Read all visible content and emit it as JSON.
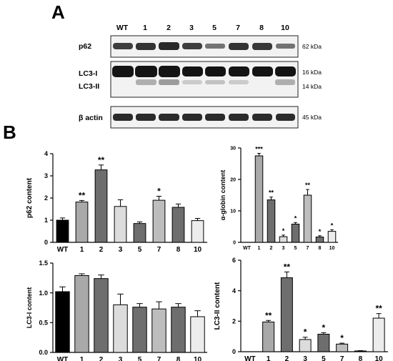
{
  "panel_a": {
    "letter": "A",
    "lane_labels": [
      "WT",
      "1",
      "2",
      "3",
      "5",
      "7",
      "8",
      "10"
    ],
    "rows": [
      {
        "label": "p62",
        "label2": "",
        "sizes": [
          "62 kDa"
        ]
      },
      {
        "label": "LC3-I",
        "label2": "LC3-II",
        "sizes": [
          "16 kDa",
          "14 kDa"
        ]
      },
      {
        "label": "β actin",
        "label2": "",
        "sizes": [
          "45 kDa"
        ]
      }
    ]
  },
  "panel_b": {
    "letter": "B"
  },
  "chart_data": [
    {
      "type": "bar",
      "categories": [
        "WT",
        "1",
        "2",
        "3",
        "5",
        "7",
        "8",
        "10"
      ],
      "values": [
        1.0,
        1.82,
        3.27,
        1.62,
        0.85,
        1.9,
        1.58,
        0.98
      ],
      "errors": [
        0.1,
        0.07,
        0.22,
        0.3,
        0.07,
        0.18,
        0.15,
        0.1
      ],
      "significance": [
        "",
        "**",
        "**",
        "",
        "",
        "*",
        "",
        ""
      ],
      "ylabel": "p62 content",
      "ylim": [
        0,
        4
      ],
      "yticks": [
        0,
        1,
        2,
        3,
        4
      ],
      "bar_colors": [
        "#000000",
        "#a9a9a9",
        "#6e6e6e",
        "#dcdcdc",
        "#6e6e6e",
        "#bdbdbd",
        "#6e6e6e",
        "#ececec"
      ]
    },
    {
      "type": "bar",
      "categories": [
        "WT",
        "1",
        "2",
        "3",
        "5",
        "7",
        "8",
        "10"
      ],
      "values": [
        0,
        27.5,
        13.5,
        1.8,
        5.8,
        15.0,
        1.7,
        3.5
      ],
      "errors": [
        0,
        0.8,
        0.9,
        0.5,
        0.5,
        1.8,
        0.4,
        0.5
      ],
      "significance": [
        "",
        "***",
        "**",
        "*",
        "*",
        "**",
        "*",
        "*"
      ],
      "ylabel": "α-globin content",
      "ylim": [
        0,
        30
      ],
      "yticks": [
        0,
        10,
        20,
        30
      ],
      "bar_colors": [
        "#000000",
        "#a9a9a9",
        "#6e6e6e",
        "#dcdcdc",
        "#6e6e6e",
        "#bdbdbd",
        "#6e6e6e",
        "#ececec"
      ]
    },
    {
      "type": "bar",
      "categories": [
        "WT",
        "1",
        "2",
        "3",
        "5",
        "7",
        "8",
        "10"
      ],
      "values": [
        1.02,
        1.29,
        1.24,
        0.8,
        0.76,
        0.73,
        0.76,
        0.6
      ],
      "errors": [
        0.08,
        0.03,
        0.06,
        0.18,
        0.06,
        0.12,
        0.06,
        0.1
      ],
      "significance": [
        "",
        "",
        "",
        "",
        "",
        "",
        "",
        ""
      ],
      "ylabel": "LC3-I content",
      "ylim": [
        0,
        1.5
      ],
      "yticks": [
        0,
        0.5,
        1.0,
        1.5
      ],
      "yticklabels": [
        "0.0",
        "0.5",
        "1.0",
        "1.5"
      ],
      "bar_colors": [
        "#000000",
        "#a9a9a9",
        "#6e6e6e",
        "#dcdcdc",
        "#6e6e6e",
        "#bdbdbd",
        "#6e6e6e",
        "#ececec"
      ]
    },
    {
      "type": "bar",
      "categories": [
        "WT",
        "1",
        "2",
        "3",
        "5",
        "7",
        "8",
        "10"
      ],
      "values": [
        0,
        1.95,
        4.85,
        0.8,
        1.15,
        0.5,
        0.05,
        2.2
      ],
      "errors": [
        0,
        0.1,
        0.38,
        0.15,
        0.1,
        0.06,
        0.02,
        0.3
      ],
      "significance": [
        "",
        "**",
        "**",
        "*",
        "*",
        "*",
        "",
        "**"
      ],
      "ylabel": "LC3-II content",
      "ylim": [
        0,
        6
      ],
      "yticks": [
        0,
        2,
        4,
        6
      ],
      "bar_colors": [
        "#000000",
        "#a9a9a9",
        "#6e6e6e",
        "#dcdcdc",
        "#6e6e6e",
        "#bdbdbd",
        "#6e6e6e",
        "#ececec"
      ]
    }
  ]
}
